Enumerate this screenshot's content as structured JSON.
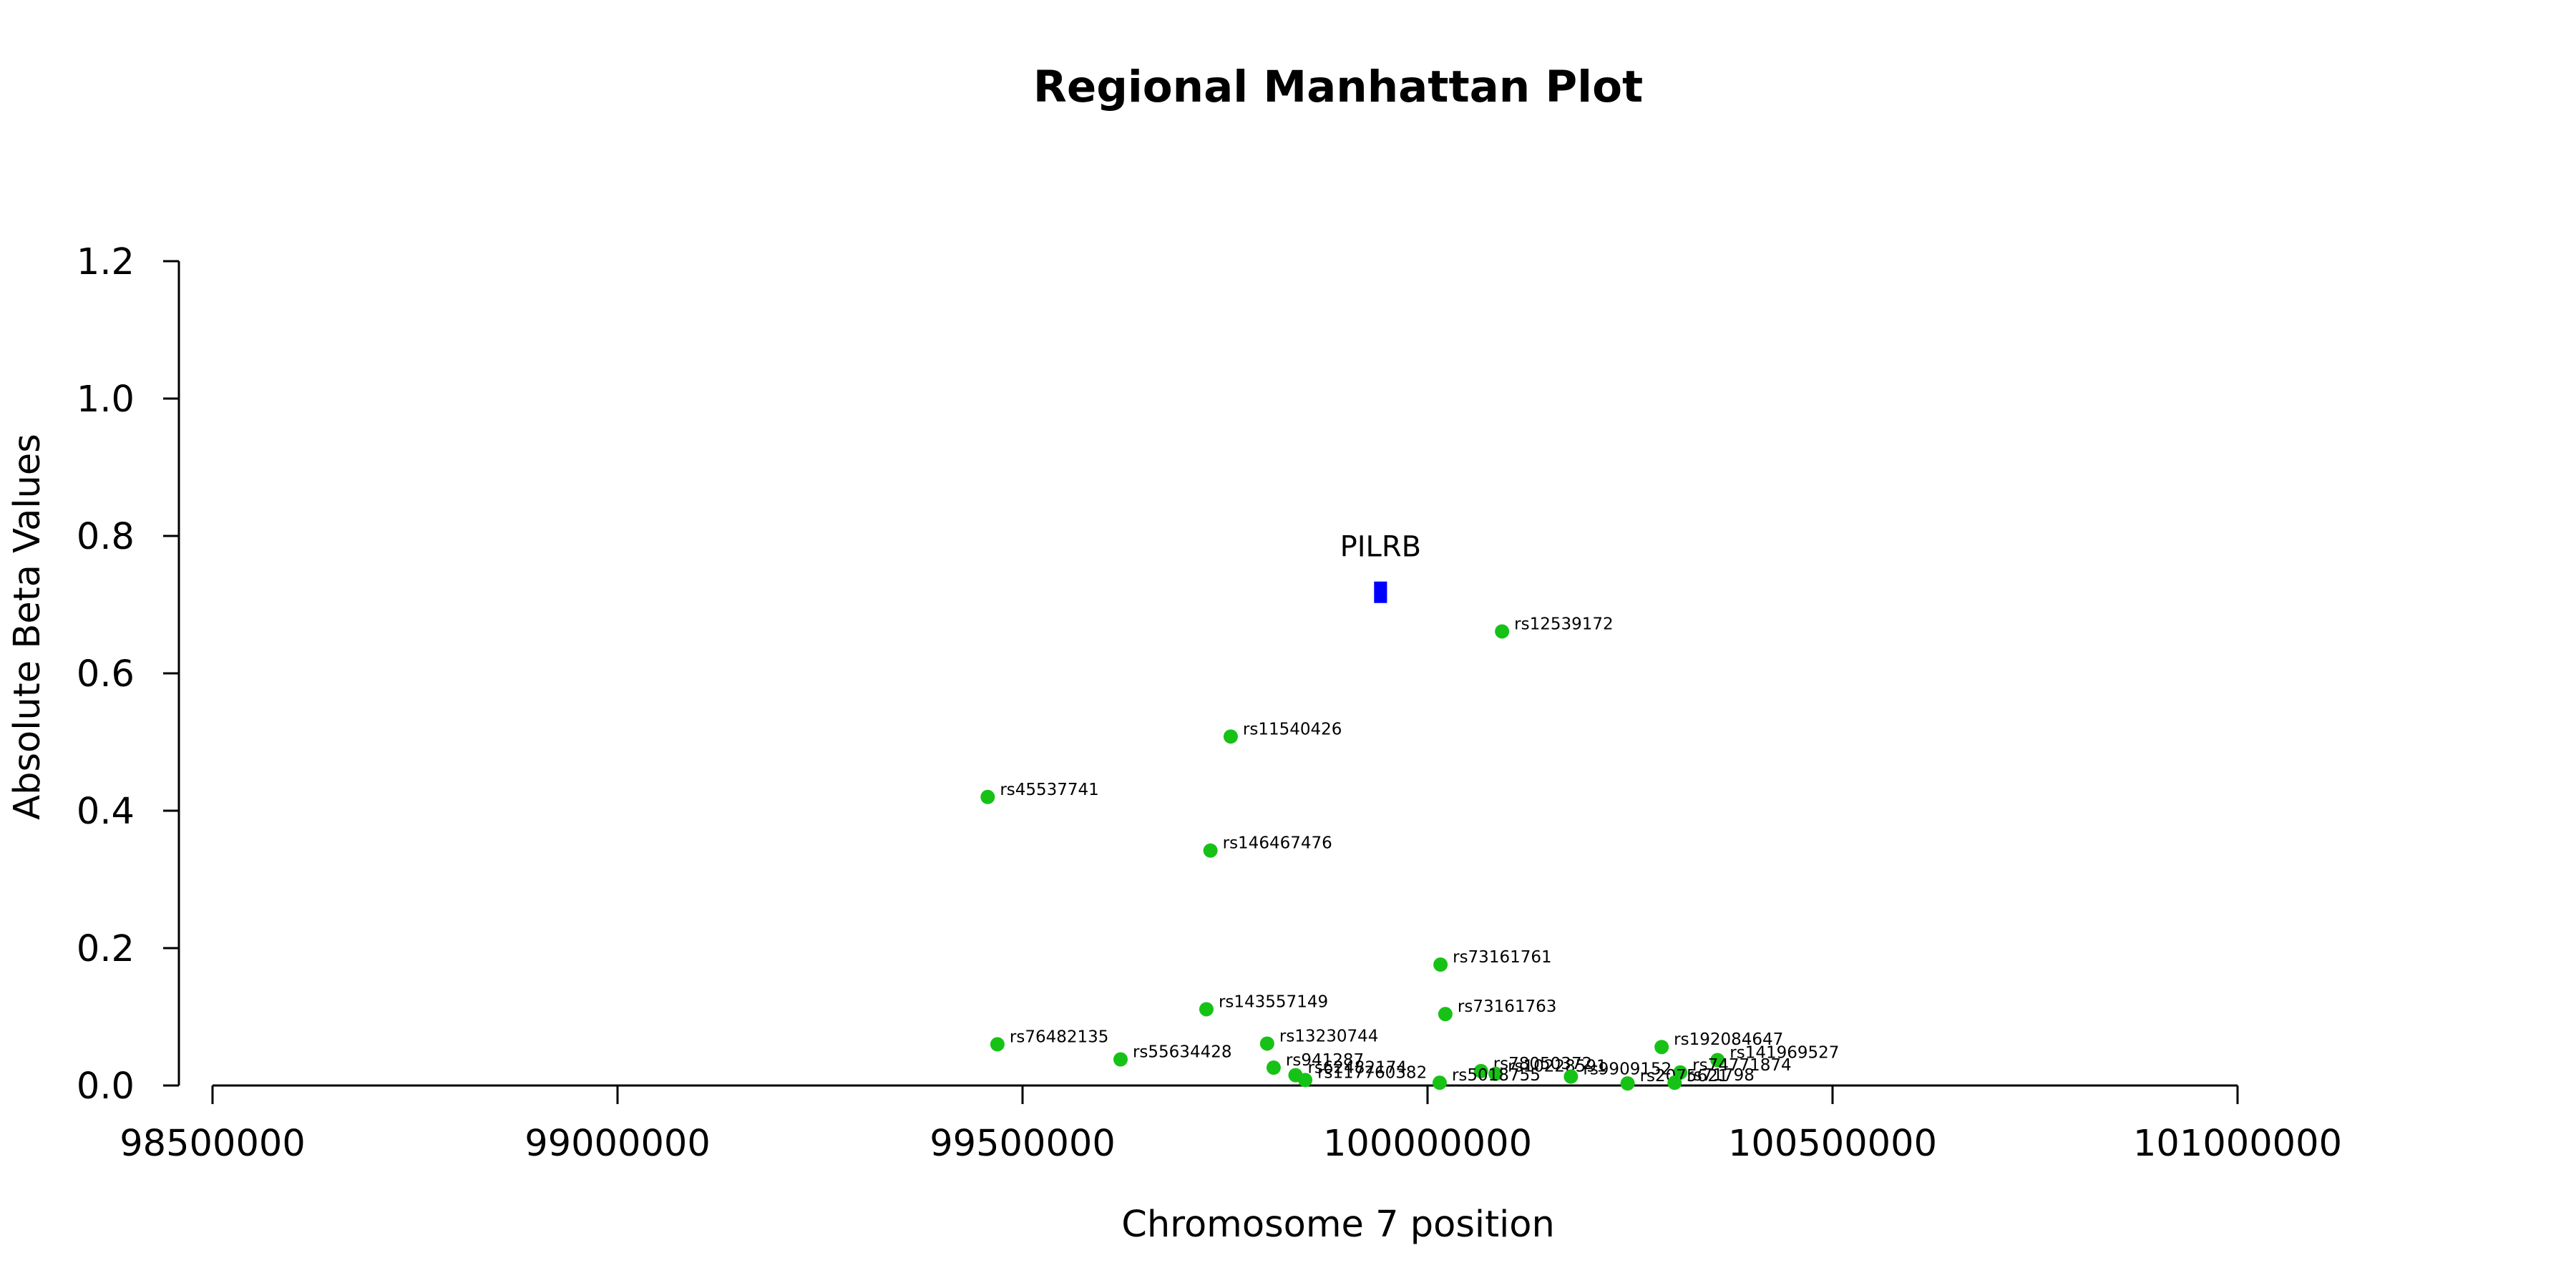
{
  "chart_data": {
    "type": "scatter",
    "title": "Regional Manhattan Plot",
    "xlabel": "Chromosome 7 position",
    "ylabel": "Absolute Beta Values",
    "xlim": [
      98500000,
      101000000
    ],
    "ylim": [
      0,
      1.2
    ],
    "x_ticks": [
      98500000,
      99000000,
      99500000,
      100000000,
      100500000,
      101000000
    ],
    "x_tick_labels": [
      "98500000",
      "99000000",
      "99500000",
      "100000000",
      "100500000",
      "101000000"
    ],
    "y_ticks": [
      0,
      0.2,
      0.4,
      0.6,
      0.8,
      1.0,
      1.2
    ],
    "y_tick_labels": [
      "0.0",
      "0.2",
      "0.4",
      "0.6",
      "0.8",
      "1.0",
      "1.2"
    ],
    "grid": false,
    "legend": "none",
    "colors": {
      "snp": "#17c217",
      "gene": "#0000ff"
    },
    "gene": {
      "name": "PILRB",
      "start": 99934000,
      "end": 99950000,
      "y": 0.718
    },
    "points": [
      {
        "label": "rs12539172",
        "x": 100092000,
        "y": 0.661
      },
      {
        "label": "rs11540426",
        "x": 99757000,
        "y": 0.508
      },
      {
        "label": "rs45537741",
        "x": 99457000,
        "y": 0.42
      },
      {
        "label": "rs146467476",
        "x": 99732000,
        "y": 0.342
      },
      {
        "label": "rs73161761",
        "x": 100016000,
        "y": 0.176
      },
      {
        "label": "rs143557149",
        "x": 99727000,
        "y": 0.111
      },
      {
        "label": "rs73161763",
        "x": 100022000,
        "y": 0.104
      },
      {
        "label": "rs13230744",
        "x": 99802000,
        "y": 0.061
      },
      {
        "label": "rs76482135",
        "x": 99469000,
        "y": 0.06
      },
      {
        "label": "rs192084647",
        "x": 100289000,
        "y": 0.056
      },
      {
        "label": "rs55634428",
        "x": 99621000,
        "y": 0.038
      },
      {
        "label": "rs141969527",
        "x": 100358000,
        "y": 0.037
      },
      {
        "label": "rs941287",
        "x": 99810000,
        "y": 0.026
      },
      {
        "label": "rs74771874",
        "x": 100312000,
        "y": 0.019
      },
      {
        "label": "rs62482174",
        "x": 99837000,
        "y": 0.015
      },
      {
        "label": "rs78050372",
        "x": 100066000,
        "y": 0.021
      },
      {
        "label": "rs10228591",
        "x": 100084000,
        "y": 0.017
      },
      {
        "label": "rs9909152",
        "x": 100177000,
        "y": 0.013
      },
      {
        "label": "rs117760382",
        "x": 99849000,
        "y": 0.008
      },
      {
        "label": "rs5018755",
        "x": 100015000,
        "y": 0.004
      },
      {
        "label": "rs2075621",
        "x": 100247000,
        "y": 0.003
      },
      {
        "label": "rs71798",
        "x": 100305000,
        "y": 0.004
      }
    ]
  }
}
